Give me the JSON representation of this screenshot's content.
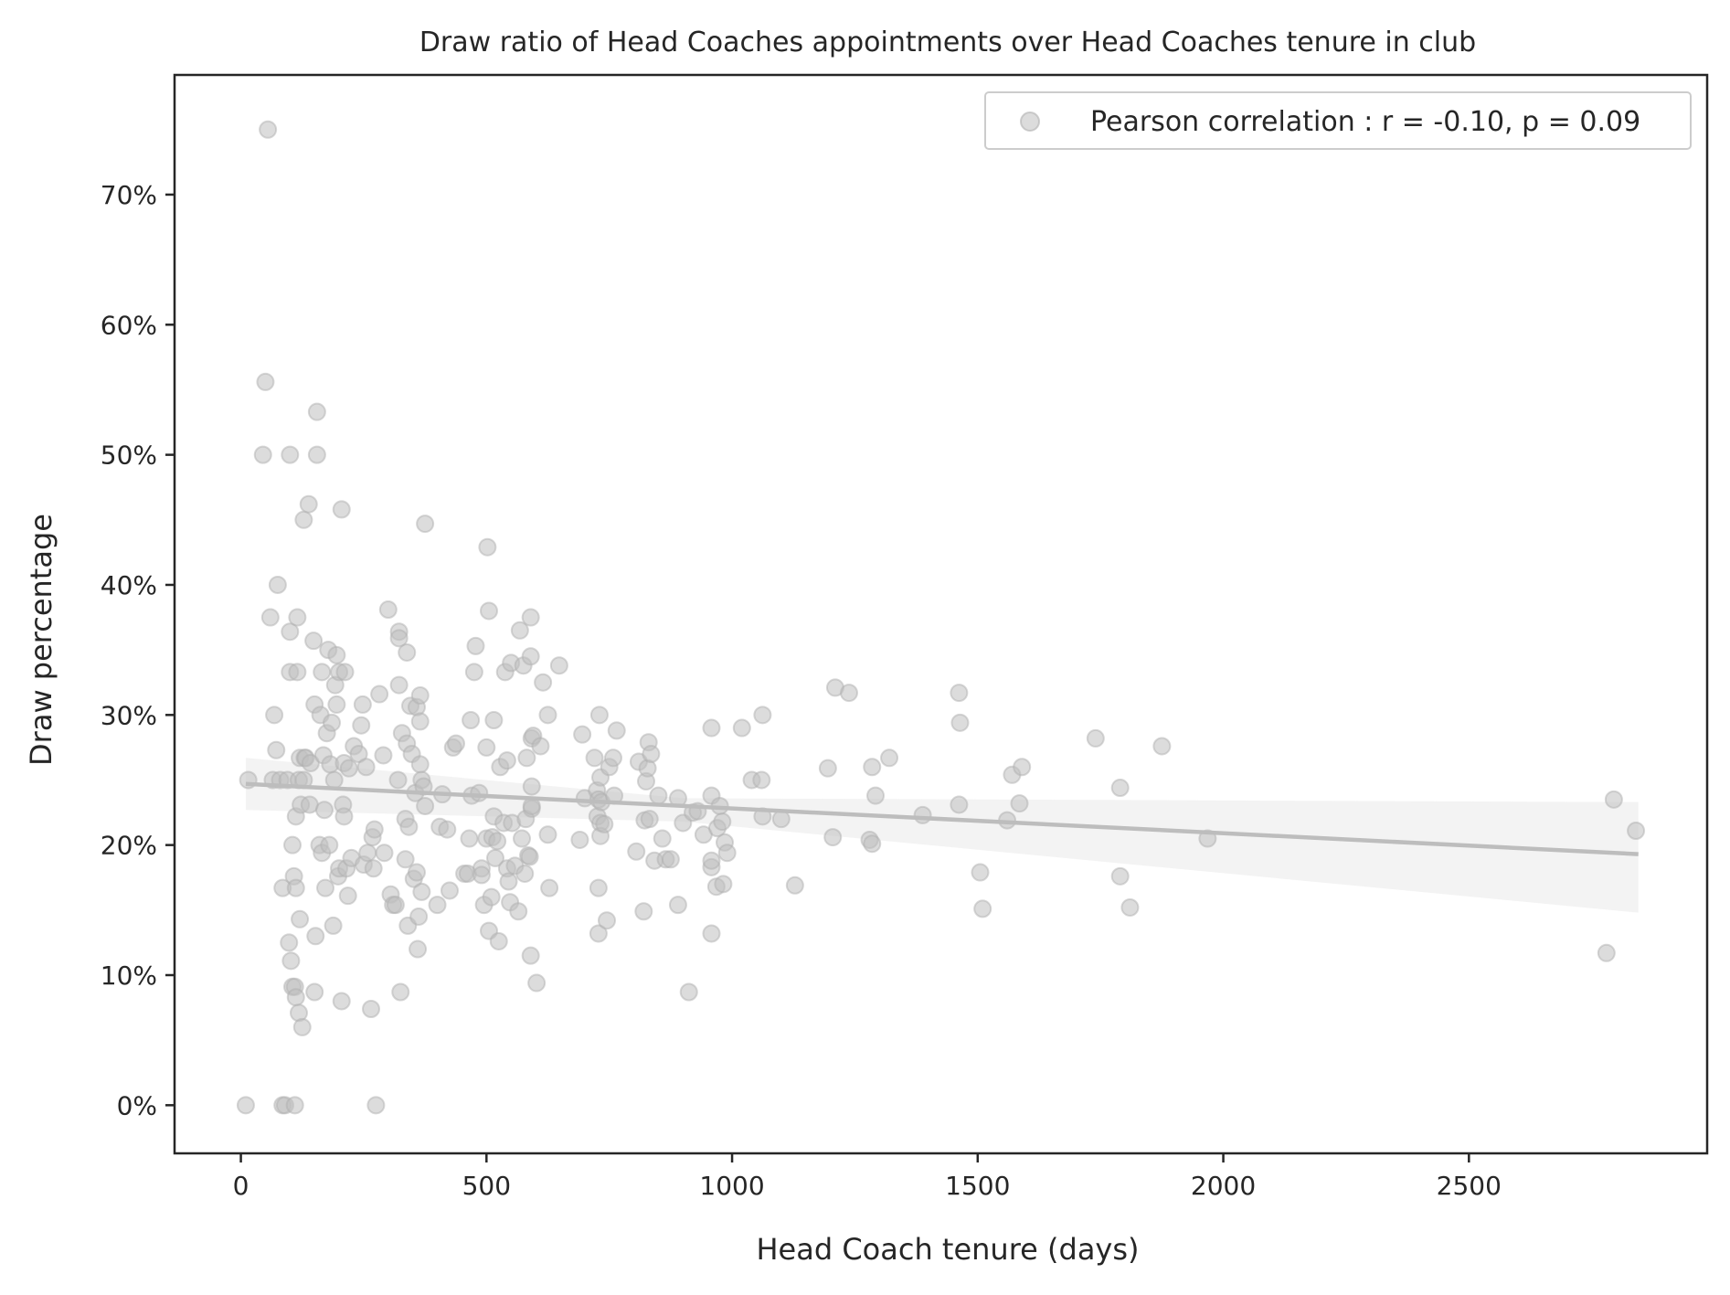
{
  "chart_data": {
    "type": "scatter",
    "title": "Draw ratio of Head Coaches appointments over Head Coaches tenure in club",
    "xlabel": "Head Coach tenure (days)",
    "ylabel": "Draw percentage",
    "xlim": [
      -135,
      2985
    ],
    "ylim": [
      -3.7,
      79.2
    ],
    "x_ticks": [
      0,
      500,
      1000,
      1500,
      2000,
      2500
    ],
    "y_ticks": [
      0,
      10,
      20,
      30,
      40,
      50,
      60,
      70
    ],
    "y_tick_suffix": "%",
    "grid": false,
    "legend": {
      "position": "upper right",
      "label": "Pearson correlation : r = -0.10, p = 0.09"
    },
    "marker_color": "#c0c0c0",
    "regression": {
      "x_range": [
        10,
        2845
      ],
      "y_at_start": 24.7,
      "y_at_end": 19.3,
      "ci_at_start": [
        22.7,
        26.7
      ],
      "ci_mid": {
        "x": 900,
        "lo": 21.8,
        "hi": 23.6
      },
      "ci_at_end": [
        14.8,
        23.3
      ]
    },
    "points": [
      [
        10,
        0
      ],
      [
        15,
        25
      ],
      [
        45,
        50
      ],
      [
        50,
        55.6
      ],
      [
        55,
        75
      ],
      [
        60,
        37.5
      ],
      [
        65,
        25
      ],
      [
        68,
        30
      ],
      [
        72,
        27.3
      ],
      [
        75,
        40
      ],
      [
        80,
        25
      ],
      [
        85,
        16.7
      ],
      [
        85,
        0
      ],
      [
        90,
        0
      ],
      [
        95,
        25
      ],
      [
        98,
        12.5
      ],
      [
        100,
        36.4
      ],
      [
        100,
        33.3
      ],
      [
        100,
        50
      ],
      [
        102,
        11.1
      ],
      [
        105,
        20
      ],
      [
        105,
        9.1
      ],
      [
        108,
        17.6
      ],
      [
        110,
        0
      ],
      [
        110,
        9.1
      ],
      [
        112,
        8.3
      ],
      [
        112,
        16.7
      ],
      [
        112,
        22.2
      ],
      [
        115,
        33.3
      ],
      [
        115,
        37.5
      ],
      [
        118,
        25
      ],
      [
        118,
        7.1
      ],
      [
        120,
        14.3
      ],
      [
        120,
        26.7
      ],
      [
        122,
        23.1
      ],
      [
        125,
        6
      ],
      [
        128,
        25
      ],
      [
        128,
        45
      ],
      [
        130,
        26.7
      ],
      [
        132,
        26.7
      ],
      [
        138,
        46.2
      ],
      [
        140,
        23.1
      ],
      [
        142,
        26.3
      ],
      [
        148,
        35.7
      ],
      [
        150,
        8.7
      ],
      [
        150,
        30.8
      ],
      [
        152,
        13
      ],
      [
        155,
        53.3
      ],
      [
        155,
        50
      ],
      [
        160,
        20
      ],
      [
        162,
        30
      ],
      [
        165,
        33.3
      ],
      [
        165,
        19.4
      ],
      [
        168,
        26.9
      ],
      [
        170,
        22.7
      ],
      [
        172,
        16.7
      ],
      [
        175,
        28.6
      ],
      [
        178,
        35
      ],
      [
        180,
        20
      ],
      [
        182,
        26.2
      ],
      [
        185,
        29.4
      ],
      [
        188,
        13.8
      ],
      [
        190,
        25
      ],
      [
        192,
        32.3
      ],
      [
        195,
        30.8
      ],
      [
        195,
        34.6
      ],
      [
        198,
        17.6
      ],
      [
        200,
        18.2
      ],
      [
        200,
        33.3
      ],
      [
        205,
        8
      ],
      [
        205,
        45.8
      ],
      [
        208,
        23.1
      ],
      [
        210,
        22.2
      ],
      [
        210,
        26.3
      ],
      [
        212,
        33.3
      ],
      [
        215,
        18.2
      ],
      [
        218,
        16.1
      ],
      [
        220,
        25.9
      ],
      [
        225,
        19
      ],
      [
        230,
        27.6
      ],
      [
        240,
        27
      ],
      [
        245,
        29.2
      ],
      [
        248,
        30.8
      ],
      [
        250,
        18.5
      ],
      [
        255,
        26
      ],
      [
        258,
        19.4
      ],
      [
        265,
        7.4
      ],
      [
        268,
        20.6
      ],
      [
        270,
        18.2
      ],
      [
        272,
        21.2
      ],
      [
        275,
        0
      ],
      [
        282,
        31.6
      ],
      [
        290,
        26.9
      ],
      [
        292,
        19.4
      ],
      [
        300,
        38.1
      ],
      [
        305,
        16.2
      ],
      [
        310,
        15.4
      ],
      [
        315,
        15.4
      ],
      [
        320,
        25
      ],
      [
        322,
        36.4
      ],
      [
        322,
        32.3
      ],
      [
        322,
        35.9
      ],
      [
        325,
        8.7
      ],
      [
        328,
        28.6
      ],
      [
        335,
        22
      ],
      [
        335,
        18.9
      ],
      [
        338,
        27.8
      ],
      [
        338,
        34.8
      ],
      [
        340,
        13.8
      ],
      [
        342,
        21.4
      ],
      [
        345,
        30.7
      ],
      [
        348,
        27
      ],
      [
        352,
        17.4
      ],
      [
        355,
        24
      ],
      [
        358,
        17.9
      ],
      [
        358,
        30.6
      ],
      [
        360,
        12
      ],
      [
        362,
        14.5
      ],
      [
        365,
        31.5
      ],
      [
        365,
        29.5
      ],
      [
        365,
        26.2
      ],
      [
        368,
        25
      ],
      [
        368,
        16.4
      ],
      [
        372,
        24.5
      ],
      [
        375,
        23
      ],
      [
        375,
        44.7
      ],
      [
        400,
        15.4
      ],
      [
        405,
        21.4
      ],
      [
        410,
        23.9
      ],
      [
        420,
        21.2
      ],
      [
        425,
        16.5
      ],
      [
        432,
        27.5
      ],
      [
        438,
        27.8
      ],
      [
        455,
        17.8
      ],
      [
        462,
        17.8
      ],
      [
        465,
        20.5
      ],
      [
        468,
        29.6
      ],
      [
        470,
        23.8
      ],
      [
        475,
        33.3
      ],
      [
        478,
        35.3
      ],
      [
        485,
        24
      ],
      [
        490,
        18.2
      ],
      [
        490,
        17.7
      ],
      [
        495,
        15.4
      ],
      [
        500,
        20.5
      ],
      [
        500,
        27.5
      ],
      [
        502,
        42.9
      ],
      [
        505,
        38
      ],
      [
        505,
        13.4
      ],
      [
        510,
        16
      ],
      [
        512,
        20.6
      ],
      [
        515,
        22.2
      ],
      [
        515,
        29.6
      ],
      [
        518,
        19
      ],
      [
        522,
        20.3
      ],
      [
        525,
        12.6
      ],
      [
        528,
        26
      ],
      [
        535,
        21.7
      ],
      [
        538,
        33.3
      ],
      [
        542,
        26.5
      ],
      [
        542,
        18.2
      ],
      [
        545,
        17.2
      ],
      [
        548,
        15.6
      ],
      [
        550,
        34
      ],
      [
        552,
        21.7
      ],
      [
        558,
        18.4
      ],
      [
        565,
        14.9
      ],
      [
        568,
        36.5
      ],
      [
        572,
        20.5
      ],
      [
        575,
        33.8
      ],
      [
        578,
        17.8
      ],
      [
        580,
        22
      ],
      [
        582,
        26.7
      ],
      [
        585,
        19.2
      ],
      [
        588,
        19.1
      ],
      [
        590,
        11.5
      ],
      [
        590,
        37.5
      ],
      [
        590,
        34.5
      ],
      [
        592,
        28.2
      ],
      [
        592,
        24.5
      ],
      [
        592,
        22.8
      ],
      [
        592,
        23
      ],
      [
        595,
        28.4
      ],
      [
        602,
        9.4
      ],
      [
        610,
        27.6
      ],
      [
        615,
        32.5
      ],
      [
        625,
        30
      ],
      [
        625,
        20.8
      ],
      [
        628,
        16.7
      ],
      [
        648,
        33.8
      ],
      [
        690,
        20.4
      ],
      [
        695,
        28.5
      ],
      [
        700,
        23.6
      ],
      [
        720,
        26.7
      ],
      [
        725,
        24.2
      ],
      [
        726,
        22.2
      ],
      [
        728,
        23.5
      ],
      [
        728,
        16.7
      ],
      [
        728,
        13.2
      ],
      [
        730,
        30
      ],
      [
        732,
        25.2
      ],
      [
        732,
        21.7
      ],
      [
        732,
        20.7
      ],
      [
        734,
        23.3
      ],
      [
        740,
        21.6
      ],
      [
        745,
        14.2
      ],
      [
        750,
        26
      ],
      [
        758,
        26.7
      ],
      [
        760,
        23.8
      ],
      [
        765,
        28.8
      ],
      [
        805,
        19.5
      ],
      [
        810,
        26.4
      ],
      [
        820,
        14.9
      ],
      [
        822,
        21.9
      ],
      [
        825,
        24.9
      ],
      [
        828,
        25.9
      ],
      [
        830,
        27.9
      ],
      [
        832,
        22
      ],
      [
        835,
        27
      ],
      [
        842,
        18.8
      ],
      [
        850,
        23.8
      ],
      [
        858,
        20.5
      ],
      [
        865,
        18.9
      ],
      [
        875,
        18.9
      ],
      [
        890,
        23.6
      ],
      [
        890,
        15.4
      ],
      [
        900,
        21.7
      ],
      [
        912,
        8.7
      ],
      [
        920,
        22.5
      ],
      [
        930,
        22.6
      ],
      [
        942,
        20.8
      ],
      [
        958,
        13.2
      ],
      [
        958,
        18.3
      ],
      [
        958,
        18.8
      ],
      [
        958,
        23.8
      ],
      [
        958,
        29
      ],
      [
        968,
        16.8
      ],
      [
        970,
        21.3
      ],
      [
        975,
        23
      ],
      [
        980,
        21.8
      ],
      [
        982,
        17
      ],
      [
        985,
        20.2
      ],
      [
        990,
        19.4
      ],
      [
        1020,
        29
      ],
      [
        1040,
        25
      ],
      [
        1060,
        25
      ],
      [
        1062,
        22.2
      ],
      [
        1062,
        30
      ],
      [
        1100,
        22
      ],
      [
        1128,
        16.9
      ],
      [
        1195,
        25.9
      ],
      [
        1205,
        20.6
      ],
      [
        1210,
        32.1
      ],
      [
        1238,
        31.7
      ],
      [
        1280,
        20.4
      ],
      [
        1285,
        20.1
      ],
      [
        1285,
        26
      ],
      [
        1292,
        23.8
      ],
      [
        1320,
        26.7
      ],
      [
        1388,
        22.3
      ],
      [
        1462,
        23.1
      ],
      [
        1462,
        31.7
      ],
      [
        1464,
        29.4
      ],
      [
        1505,
        17.9
      ],
      [
        1510,
        15.1
      ],
      [
        1560,
        21.9
      ],
      [
        1570,
        25.4
      ],
      [
        1585,
        23.2
      ],
      [
        1590,
        26
      ],
      [
        1740,
        28.2
      ],
      [
        1790,
        17.6
      ],
      [
        1790,
        24.4
      ],
      [
        1810,
        15.2
      ],
      [
        1875,
        27.6
      ],
      [
        1968,
        20.5
      ],
      [
        2780,
        11.7
      ],
      [
        2795,
        23.5
      ],
      [
        2840,
        21.1
      ]
    ]
  }
}
